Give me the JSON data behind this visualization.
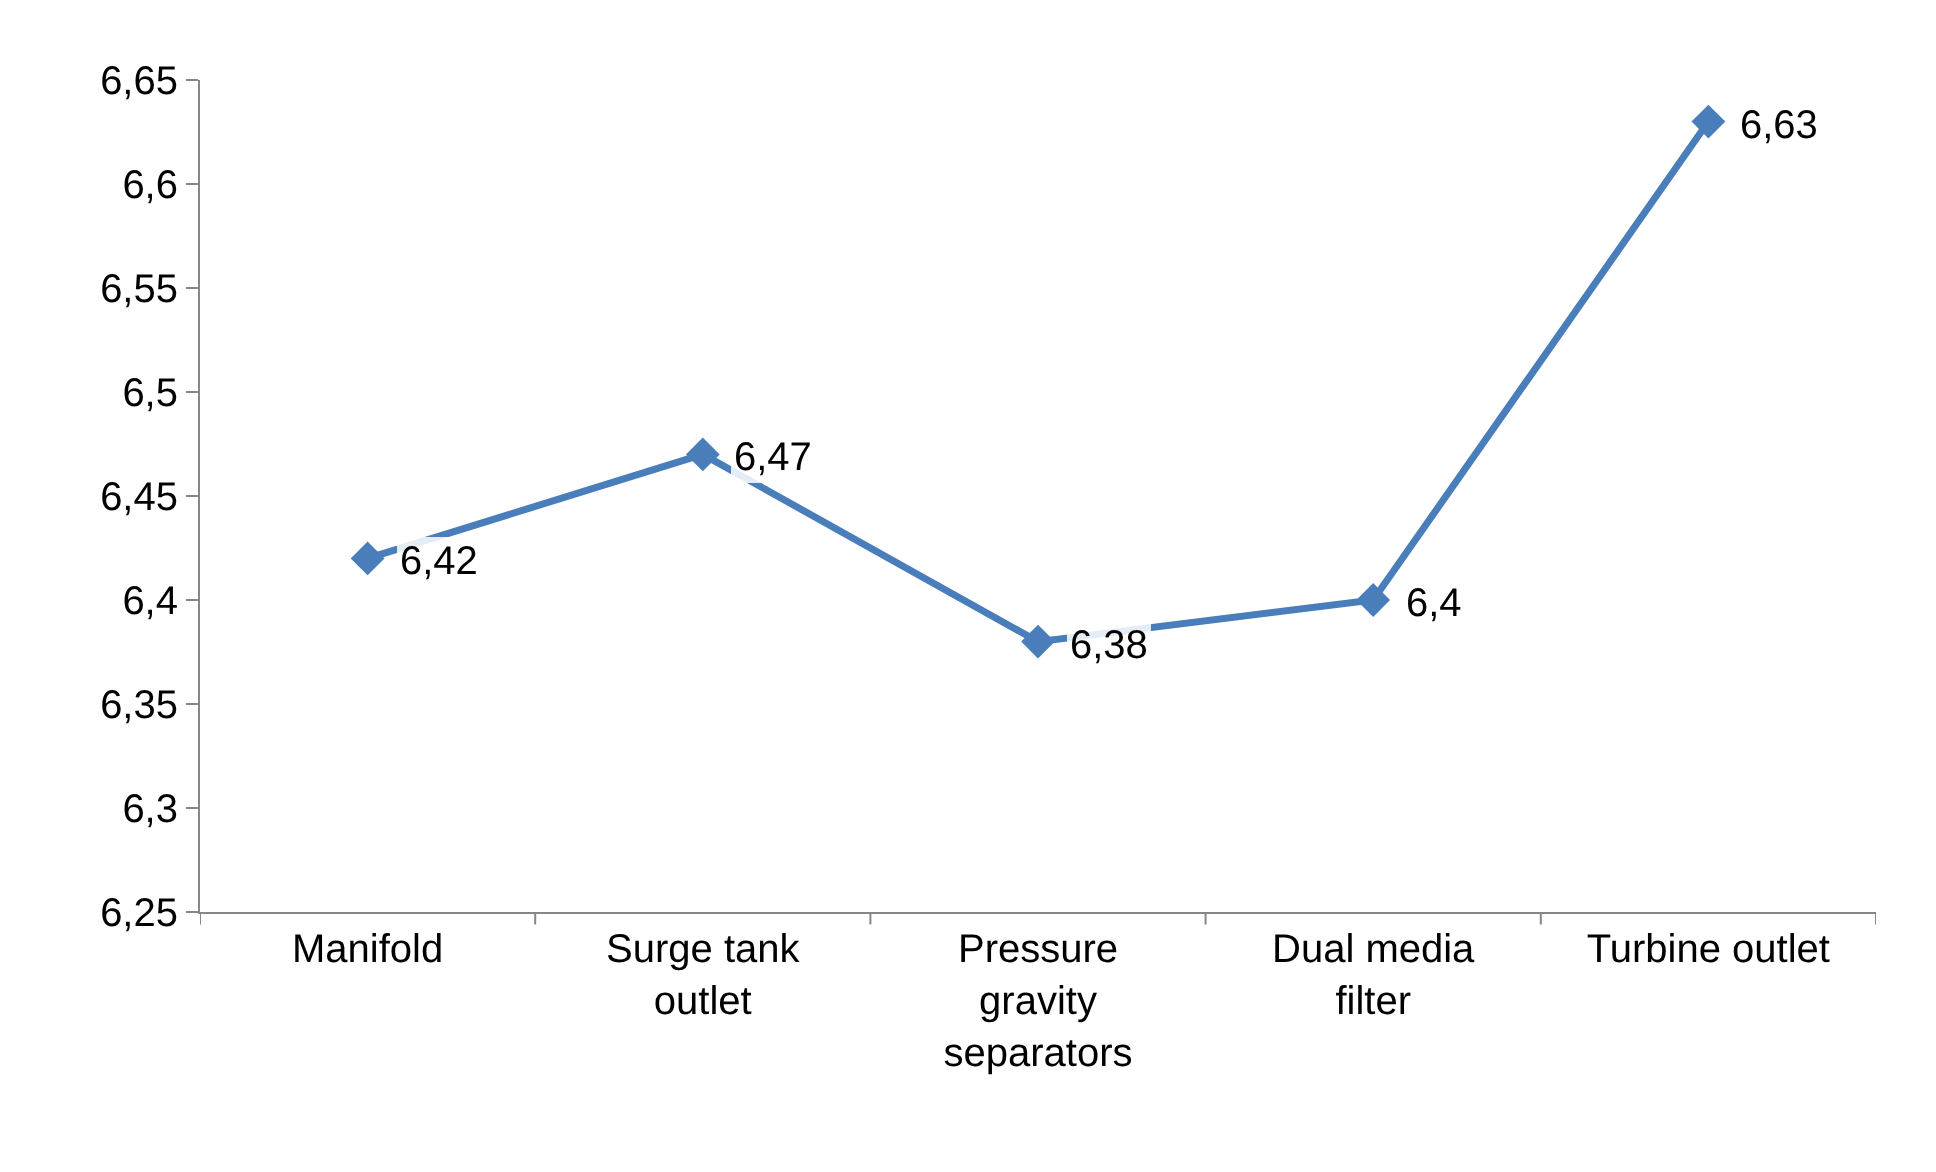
{
  "chart_data": {
    "type": "line",
    "categories": [
      "Manifold",
      "Surge tank outlet",
      "Pressure gravity separators",
      "Dual media filter",
      "Turbine outlet"
    ],
    "series": [
      {
        "color": "#4a7ebb",
        "values": [
          6.42,
          6.47,
          6.38,
          6.4,
          6.63
        ],
        "value_labels": [
          "6,42",
          "6,47",
          "6,38",
          "6,4",
          "6,63"
        ]
      }
    ],
    "ylim": [
      6.25,
      6.65
    ],
    "yticks": [
      {
        "value": 6.25,
        "label": "6,25"
      },
      {
        "value": 6.3,
        "label": "6,3"
      },
      {
        "value": 6.35,
        "label": "6,35"
      },
      {
        "value": 6.4,
        "label": "6,4"
      },
      {
        "value": 6.45,
        "label": "6,45"
      },
      {
        "value": 6.5,
        "label": "6,5"
      },
      {
        "value": 6.55,
        "label": "6,55"
      },
      {
        "value": 6.6,
        "label": "6,6"
      },
      {
        "value": 6.65,
        "label": "6,65"
      }
    ],
    "grid": false,
    "marker": "diamond",
    "line_style": "solid"
  }
}
